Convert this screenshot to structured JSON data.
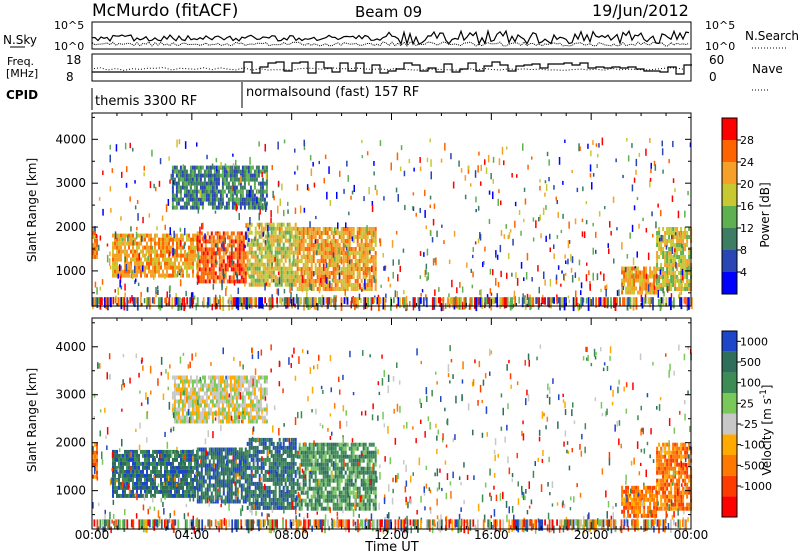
{
  "header": {
    "station": "McMurdo (fitACF)",
    "beam": "Beam 09",
    "date": "19/Jun/2012"
  },
  "status_panels": {
    "nsky_label": "N.Sky",
    "nsky_ticks": [
      "10^5",
      "10^0"
    ],
    "nsearch_label": "N.Search",
    "nsearch_ticks": [
      "10^5",
      "10^0"
    ],
    "freq_label_line1": "Freq.",
    "freq_label_line2": "[MHz]",
    "freq_ticks": [
      "18",
      "8"
    ],
    "nave_label": "Nave",
    "nave_ticks": [
      "60",
      "0"
    ],
    "cpid_label": "CPID",
    "cpid_segments": [
      {
        "text": "themis 3300 RF",
        "start_hour": 0.0
      },
      {
        "text": "normalsound (fast) 157 RF",
        "start_hour": 6.0
      }
    ]
  },
  "chart_data": [
    {
      "type": "heatmap",
      "title": "",
      "xlabel": "Time UT",
      "ylabel": "Slant Range [km]",
      "x_ticks": [
        "00:00",
        "04:00",
        "08:00",
        "12:00",
        "16:00",
        "20:00",
        "00:00"
      ],
      "xlim_hours": [
        0,
        24
      ],
      "y_ticks": [
        1000,
        2000,
        3000,
        4000
      ],
      "ylim": [
        200,
        4600
      ],
      "colorbar": {
        "label": "Power [dB]",
        "ticks": [
          4,
          8,
          12,
          16,
          20,
          24,
          28
        ],
        "colors": [
          "#0000ff",
          "#2946b4",
          "#3c7d64",
          "#5fb050",
          "#c8c832",
          "#f5a028",
          "#ff6400",
          "#ff0000"
        ]
      },
      "regions": [
        {
          "t0": 0.0,
          "t1": 0.2,
          "r0": 1300,
          "r1": 2000,
          "level": 5
        },
        {
          "t0": 0.8,
          "t1": 4.2,
          "r0": 850,
          "r1": 1850,
          "level": 5
        },
        {
          "t0": 4.2,
          "t1": 6.2,
          "r0": 750,
          "r1": 1900,
          "level": 6
        },
        {
          "t0": 6.2,
          "t1": 8.2,
          "r0": 650,
          "r1": 2100,
          "level": 4
        },
        {
          "t0": 8.2,
          "t1": 11.4,
          "r0": 600,
          "r1": 2000,
          "level": 5
        },
        {
          "t0": 3.2,
          "t1": 7.0,
          "r0": 2400,
          "r1": 3400,
          "level": 2
        },
        {
          "t0": 21.2,
          "t1": 22.6,
          "r0": 500,
          "r1": 1100,
          "level": 5
        },
        {
          "t0": 22.6,
          "t1": 24.0,
          "r0": 600,
          "r1": 2000,
          "level": 4
        }
      ]
    },
    {
      "type": "heatmap",
      "title": "",
      "xlabel": "Time UT",
      "ylabel": "Slant Range [km]",
      "x_ticks": [
        "00:00",
        "04:00",
        "08:00",
        "12:00",
        "16:00",
        "20:00",
        "00:00"
      ],
      "xlim_hours": [
        0,
        24
      ],
      "y_ticks": [
        1000,
        2000,
        3000,
        4000
      ],
      "ylim": [
        200,
        4600
      ],
      "colorbar": {
        "label": "Velocity [m s^-1]",
        "ticks": [
          1000,
          500,
          100,
          25,
          -25,
          -100,
          -500,
          -1000
        ],
        "colors": [
          "#1e46c8",
          "#2e6e5a",
          "#3d8c55",
          "#78c85a",
          "#c8c8c8",
          "#ffaa00",
          "#ff7800",
          "#ff3c00",
          "#ff0000"
        ]
      },
      "regions": [
        {
          "t0": 0.0,
          "t1": 0.2,
          "r0": 1300,
          "r1": 2000,
          "level": 6
        },
        {
          "t0": 0.8,
          "t1": 4.2,
          "r0": 850,
          "r1": 1850,
          "level": 1
        },
        {
          "t0": 4.2,
          "t1": 6.2,
          "r0": 750,
          "r1": 1900,
          "level": 1
        },
        {
          "t0": 6.2,
          "t1": 8.2,
          "r0": 650,
          "r1": 2100,
          "level": 1
        },
        {
          "t0": 8.2,
          "t1": 11.4,
          "r0": 600,
          "r1": 2000,
          "level": 2
        },
        {
          "t0": 3.2,
          "t1": 7.0,
          "r0": 2400,
          "r1": 3400,
          "level": 4
        },
        {
          "t0": 21.2,
          "t1": 22.6,
          "r0": 500,
          "r1": 1100,
          "level": 6
        },
        {
          "t0": 22.6,
          "t1": 24.0,
          "r0": 600,
          "r1": 2000,
          "level": 6
        }
      ]
    }
  ]
}
